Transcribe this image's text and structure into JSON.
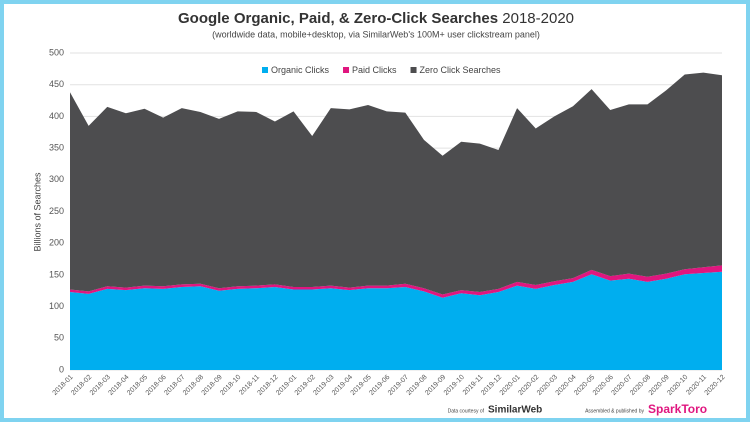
{
  "chart_data": {
    "type": "stacked-area",
    "title": "Google Organic, Paid, & Zero-Click Searches",
    "title_suffix": "2018-2020",
    "subtitle": "(worldwide data, mobile+desktop, via SimilarWeb's 100M+ user clickstream panel)",
    "ylabel": "Billions of Searches",
    "categories": [
      "2018-01",
      "2018-02",
      "2018-03",
      "2018-04",
      "2018-05",
      "2018-06",
      "2018-07",
      "2018-08",
      "2018-09",
      "2018-10",
      "2018-11",
      "2018-12",
      "2019-01",
      "2019-02",
      "2019-03",
      "2019-04",
      "2019-05",
      "2019-06",
      "2019-07",
      "2019-08",
      "2019-09",
      "2019-10",
      "2019-11",
      "2019-12",
      "2020-01",
      "2020-02",
      "2020-03",
      "2020-04",
      "2020-05",
      "2020-06",
      "2020-07",
      "2020-08",
      "2020-09",
      "2020-10",
      "2020-11",
      "2020-12"
    ],
    "series": [
      {
        "name": "Organic Clicks",
        "color": "#00aeef",
        "values": [
          123,
          120,
          128,
          126,
          129,
          128,
          131,
          132,
          125,
          128,
          129,
          131,
          127,
          127,
          129,
          126,
          129,
          129,
          131,
          124,
          114,
          121,
          118,
          123,
          133,
          128,
          134,
          139,
          151,
          141,
          144,
          139,
          144,
          151,
          153,
          155
        ]
      },
      {
        "name": "Paid Clicks",
        "color": "#e0167f",
        "values": [
          4,
          4,
          4,
          4,
          4,
          4,
          4,
          4,
          4,
          4,
          4,
          4,
          4,
          4,
          4,
          4,
          4,
          4,
          5,
          5,
          5,
          5,
          5,
          5,
          6,
          6,
          6,
          6,
          7,
          7,
          8,
          8,
          8,
          8,
          9,
          10
        ]
      },
      {
        "name": "Zero Click Searches",
        "color": "#4d4d4f",
        "values": [
          311,
          261,
          283,
          275,
          279,
          266,
          278,
          271,
          267,
          276,
          274,
          257,
          277,
          238,
          280,
          281,
          285,
          275,
          270,
          234,
          219,
          234,
          234,
          219,
          274,
          247,
          260,
          271,
          285,
          262,
          267,
          272,
          289,
          307,
          307,
          300
        ]
      }
    ],
    "ylim": [
      0,
      500
    ],
    "yticks": [
      0,
      50,
      100,
      150,
      200,
      250,
      300,
      350,
      400,
      450,
      500
    ],
    "grid": true,
    "footer": {
      "credit_label": "Data courtesy of",
      "credit_source": "SimilarWeb",
      "publisher_label": "Assembled & published by",
      "publisher": "SparkToro"
    }
  }
}
